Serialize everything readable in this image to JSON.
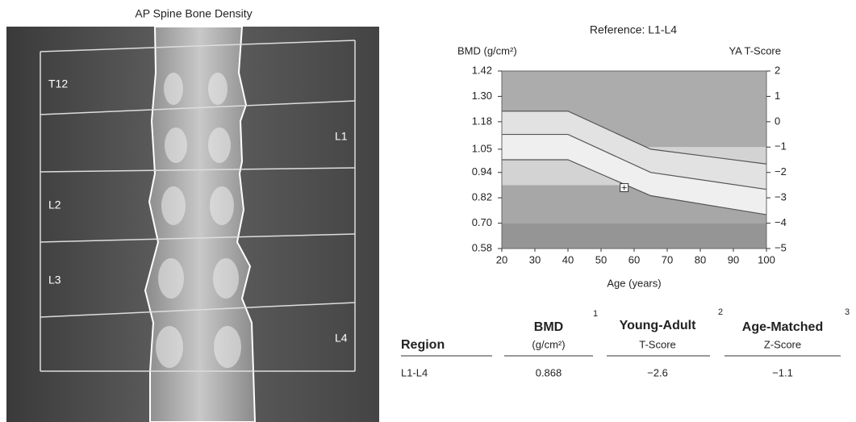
{
  "image": {
    "title": "AP Spine Bone Density",
    "labels": [
      "T12",
      "L1",
      "L2",
      "L3",
      "L4"
    ]
  },
  "chart_data": {
    "type": "line",
    "title": "Reference: L1-L4",
    "y_label": "BMD (g/cm²)",
    "y2_label": "YA T-Score",
    "x_label": "Age (years)",
    "x": [
      20,
      40,
      65,
      100
    ],
    "series": [
      {
        "color": "#555555",
        "values": [
          1.23,
          1.23,
          1.05,
          0.98
        ]
      },
      {
        "color": "#555555",
        "values": [
          1.12,
          1.12,
          0.94,
          0.86
        ]
      },
      {
        "color": "#555555",
        "values": [
          1.0,
          1.0,
          0.83,
          0.74
        ]
      }
    ],
    "band_colors": [
      "#e2e2e2",
      "#efefef"
    ],
    "zones": [
      {
        "from": -5,
        "to": -4,
        "color": "#959595"
      },
      {
        "from": -4,
        "to": -2.5,
        "color": "#a7a7a7"
      },
      {
        "from": -2.5,
        "to": -1,
        "color": "#d3d3d3"
      },
      {
        "from": -1,
        "to": 2,
        "color": "#acacac"
      }
    ],
    "point": {
      "x": 57,
      "y": 0.868
    },
    "xlim": [
      20,
      100
    ],
    "xticks": [
      20,
      30,
      40,
      50,
      60,
      70,
      80,
      90,
      100
    ],
    "ylim": [
      0.58,
      1.42
    ],
    "yticks": [
      0.58,
      {
        "value": 0.7,
        "label": "0.70"
      },
      0.82,
      0.94,
      1.05,
      1.18,
      {
        "value": 1.3,
        "label": "1.30"
      },
      1.42
    ],
    "y2lim": [
      -5,
      2
    ],
    "y2ticks": [
      {
        "value": -5,
        "label": "−5"
      },
      {
        "value": -4,
        "label": "−4"
      },
      {
        "value": -3,
        "label": "−3"
      },
      {
        "value": -2,
        "label": "−2"
      },
      {
        "value": -1,
        "label": "−1"
      },
      0,
      1,
      2
    ]
  },
  "table": {
    "header": {
      "region": "Region",
      "bmd": "BMD",
      "bmd_note": "1",
      "bmd_unit": "(g/cm²)",
      "ya": "Young-Adult",
      "ya_note": "2",
      "ya_unit": "T-Score",
      "am": "Age-Matched",
      "am_note": "3",
      "am_unit": "Z-Score"
    },
    "rows": [
      [
        "L1-L4",
        "0.868",
        "−2.6",
        "−1.1"
      ]
    ]
  }
}
